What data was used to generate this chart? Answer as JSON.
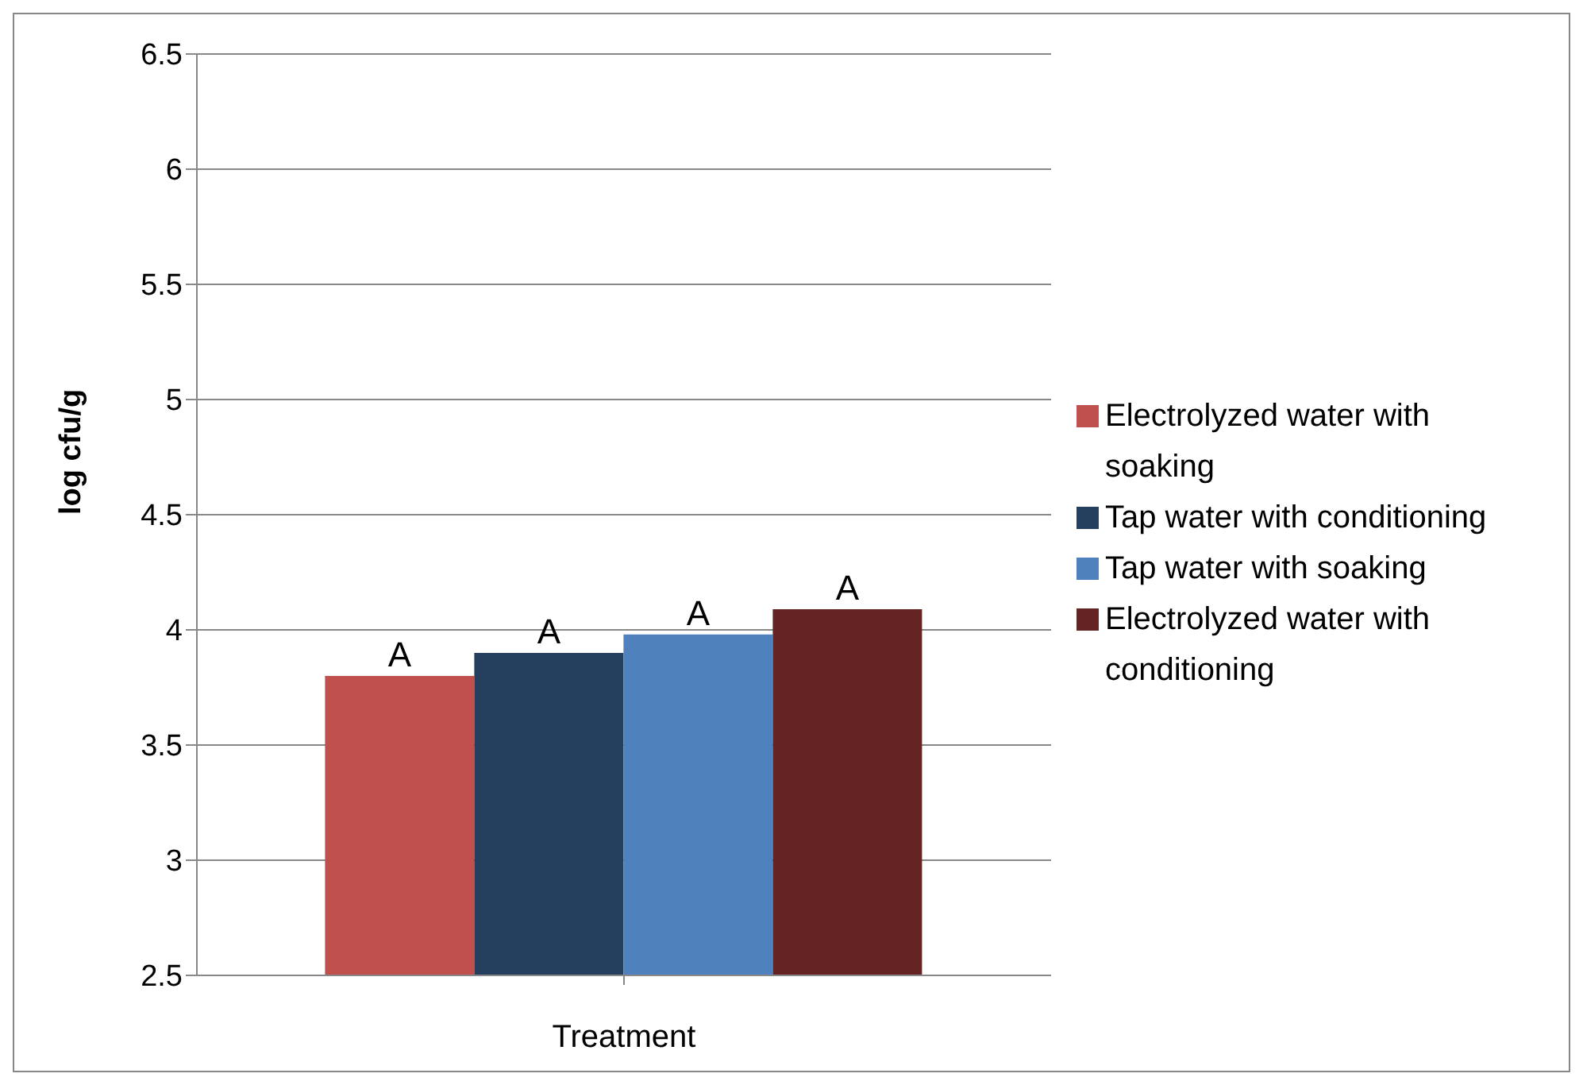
{
  "chart_data": {
    "type": "bar",
    "xlabel": "Treatment",
    "ylabel": "log cfu/g",
    "categories": [
      null
    ],
    "series": [
      {
        "name": "Electrolyzed water with soaking",
        "color": "#c0504d",
        "values": [
          3.8
        ],
        "value_labels": [
          "A"
        ]
      },
      {
        "name": "Tap water with conditioning",
        "color": "#253f5f",
        "values": [
          3.9
        ],
        "value_labels": [
          "A"
        ]
      },
      {
        "name": "Tap water with soaking",
        "color": "#4f81bd",
        "values": [
          3.98
        ],
        "value_labels": [
          "A"
        ]
      },
      {
        "name": "Electrolyzed water with conditioning",
        "color": "#632423",
        "values": [
          4.09
        ],
        "value_labels": [
          "A"
        ]
      }
    ],
    "ylim": [
      2.5,
      6.5
    ],
    "yticks": [
      2.5,
      3,
      3.5,
      4,
      4.5,
      5,
      5.5,
      6,
      6.5
    ],
    "grid": "y",
    "legend": "right"
  }
}
